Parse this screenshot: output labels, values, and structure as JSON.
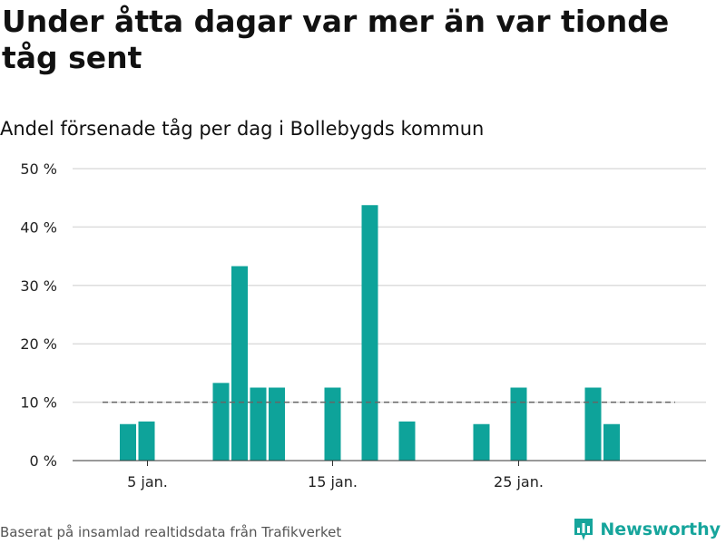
{
  "title": "Under åtta dagar var mer än var tionde tåg sent",
  "subtitle": "Andel försenade tåg per dag i Bollebygds kommun",
  "footer": {
    "source": "Baserat på insamlad realtidsdata från Trafikverket",
    "brand": "Newsworthy"
  },
  "colors": {
    "bar": "#0ea39a",
    "grid": "#dddddd",
    "reference_line": "#666666",
    "brand": "#16a59c"
  },
  "chart_data": {
    "type": "bar",
    "x_unit": "day of January",
    "days": [
      1,
      2,
      3,
      4,
      5,
      6,
      7,
      8,
      9,
      10,
      11,
      12,
      13,
      14,
      15,
      16,
      17,
      18,
      19,
      20,
      21,
      22,
      23,
      24,
      25,
      26,
      27,
      28,
      29,
      30,
      31
    ],
    "values": [
      0,
      0,
      0,
      6.25,
      6.7,
      0,
      0,
      0,
      13.3,
      33.3,
      12.5,
      12.5,
      0,
      0,
      12.5,
      0,
      43.75,
      0,
      6.7,
      0,
      0,
      0,
      6.25,
      0,
      12.5,
      0,
      0,
      0,
      12.5,
      6.25,
      0
    ],
    "ylim": [
      0,
      50
    ],
    "yticks": [
      0,
      10,
      20,
      30,
      40,
      50
    ],
    "ytick_labels": [
      "0 %",
      "10 %",
      "20 %",
      "30 %",
      "40 %",
      "50 %"
    ],
    "xtick_days": [
      5,
      15,
      25
    ],
    "xtick_labels": [
      "5 jan.",
      "15 jan.",
      "25 jan."
    ],
    "reference_line": 10,
    "reference_line_style": "dashed",
    "grid": true,
    "xlabel": "",
    "ylabel": ""
  }
}
